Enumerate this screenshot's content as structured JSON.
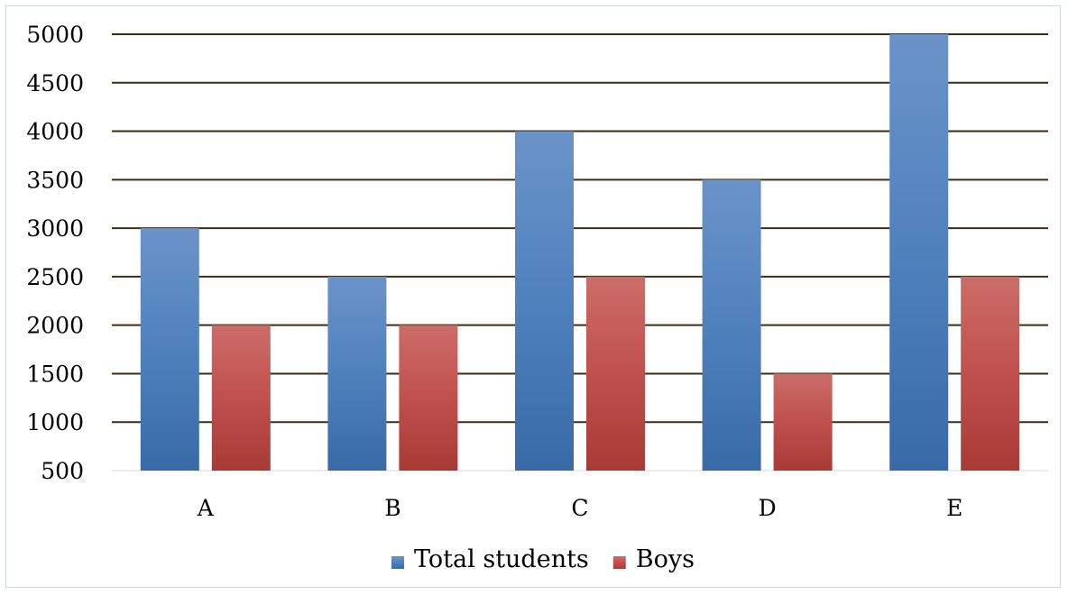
{
  "chart_data": {
    "type": "bar",
    "categories": [
      "A",
      "B",
      "C",
      "D",
      "E"
    ],
    "series": [
      {
        "name": "Total students",
        "values": [
          3000,
          2500,
          4000,
          3500,
          5000
        ],
        "color": "#4f81bd"
      },
      {
        "name": "Boys",
        "values": [
          2000,
          2000,
          2500,
          1500,
          2500
        ],
        "color": "#c0504d"
      }
    ],
    "ylim": [
      500,
      5000
    ],
    "yticks": [
      "500",
      "1000",
      "1500",
      "2000",
      "2500",
      "3000",
      "3500",
      "4000",
      "4500",
      "5000"
    ],
    "grid": true,
    "legend_position": "bottom",
    "title": "",
    "xlabel": "",
    "ylabel": ""
  }
}
